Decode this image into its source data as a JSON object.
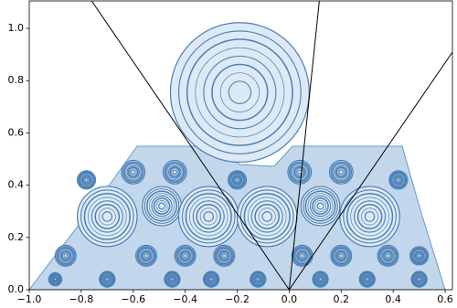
{
  "chart_data": {
    "type": "line",
    "xlim": [
      -1.0,
      0.628
    ],
    "ylim": [
      0,
      1.105
    ],
    "xticks": [
      {
        "value": -1.0,
        "label": "−1.0"
      },
      {
        "value": -0.8,
        "label": "−0.8"
      },
      {
        "value": -0.6,
        "label": "−0.6"
      },
      {
        "value": -0.4,
        "label": "−0.4"
      },
      {
        "value": -0.2,
        "label": "−0.2"
      },
      {
        "value": 0,
        "label": "0.0"
      },
      0.2,
      0.4,
      0.6
    ],
    "yticks": [
      {
        "value": 0,
        "label": "0.0"
      },
      0.2,
      0.4,
      0.6,
      0.8,
      {
        "value": 1.0,
        "label": "1.0"
      }
    ],
    "series": [
      {
        "color": "#000000",
        "x": [
          0,
          -0.76
        ],
        "values": [
          0,
          1.105
        ]
      },
      {
        "color": "#000000",
        "x": [
          0,
          0.116
        ],
        "values": [
          0,
          1.105
        ]
      },
      {
        "color": "#000000",
        "x": [
          0,
          0.628
        ],
        "values": [
          0,
          0.909
        ]
      }
    ],
    "circles": {
      "color": "#4a7fb5",
      "x": [
        -0.19,
        -0.7,
        -0.49,
        -0.31,
        -0.085,
        0.12,
        0.31,
        -0.6,
        -0.44,
        0.04,
        0.2,
        -0.2,
        0.42,
        -0.78,
        0.5,
        -0.86,
        -0.55,
        -0.4,
        -0.25,
        0.05,
        0.2,
        0.38,
        -0.9,
        -0.7,
        -0.45,
        -0.3,
        -0.12,
        0.12,
        0.3,
        0.5
      ],
      "y": [
        0.755,
        0.28,
        0.32,
        0.28,
        0.28,
        0.32,
        0.28,
        0.45,
        0.45,
        0.45,
        0.45,
        0.42,
        0.42,
        0.42,
        0.13,
        0.13,
        0.13,
        0.13,
        0.13,
        0.13,
        0.13,
        0.13,
        0.04,
        0.04,
        0.04,
        0.04,
        0.04,
        0.04,
        0.04,
        0.04
      ],
      "r": [
        0.267,
        0.115,
        0.075,
        0.115,
        0.115,
        0.075,
        0.115,
        0.045,
        0.045,
        0.045,
        0.045,
        0.035,
        0.035,
        0.035,
        0.035,
        0.04,
        0.04,
        0.04,
        0.04,
        0.04,
        0.04,
        0.04,
        0.025,
        0.03,
        0.03,
        0.03,
        0.03,
        0.03,
        0.03,
        0.03
      ]
    }
  }
}
